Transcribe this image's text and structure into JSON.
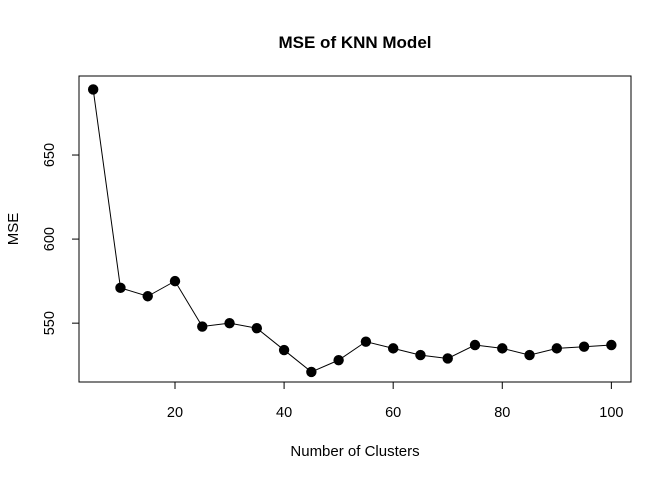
{
  "chart_data": {
    "type": "line",
    "title": "MSE of KNN Model",
    "xlabel": "Number of Clusters",
    "ylabel": "MSE",
    "xlim": [
      2.4,
      103.6
    ],
    "ylim": [
      515,
      697
    ],
    "xticks": [
      20,
      40,
      60,
      80,
      100
    ],
    "yticks": [
      550,
      600,
      650
    ],
    "grid": false,
    "legend": "none",
    "series": [
      {
        "name": "MSE",
        "x": [
          5,
          10,
          15,
          20,
          25,
          30,
          35,
          40,
          45,
          50,
          55,
          60,
          65,
          70,
          75,
          80,
          85,
          90,
          95,
          100
        ],
        "y": [
          689,
          571,
          566,
          575,
          548,
          550,
          547,
          534,
          521,
          528,
          539,
          535,
          531,
          529,
          537,
          535,
          531,
          535,
          536,
          537
        ]
      }
    ]
  }
}
